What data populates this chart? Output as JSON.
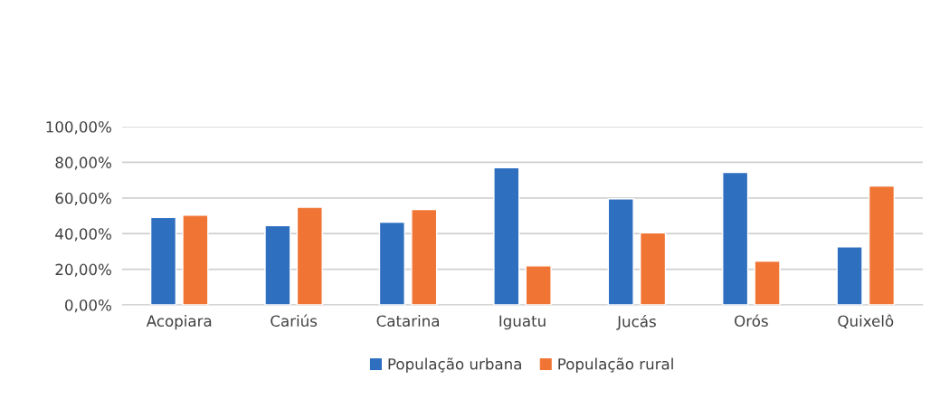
{
  "chart_data": {
    "type": "bar",
    "categories": [
      "Acopiara",
      "Cariús",
      "Catarina",
      "Iguatu",
      "Jucás",
      "Orós",
      "Quixelô"
    ],
    "series": [
      {
        "name": "População urbana",
        "color": "#2e6fc0",
        "values": [
          49.1,
          44.5,
          46.4,
          77.0,
          59.5,
          74.4,
          32.6
        ]
      },
      {
        "name": "População rural",
        "color": "#f07535",
        "values": [
          50.3,
          54.8,
          53.5,
          21.9,
          40.4,
          24.6,
          66.7
        ]
      }
    ],
    "ylim": [
      0,
      100
    ],
    "yticks": [
      {
        "value": 0,
        "label": "0,00%"
      },
      {
        "value": 20,
        "label": "20,00%"
      },
      {
        "value": 40,
        "label": "40,00%"
      },
      {
        "value": 60,
        "label": "60,00%"
      },
      {
        "value": 80,
        "label": "80,00%"
      },
      {
        "value": 100,
        "label": "100,00%"
      }
    ],
    "grid": "y",
    "legend": "bottom"
  }
}
